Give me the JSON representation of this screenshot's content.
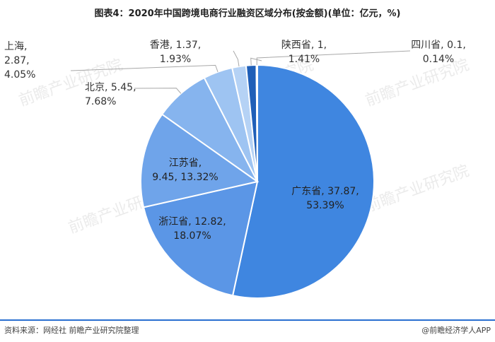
{
  "title": "图表4：2020年中国跨境电商行业融资区域分布(按金额)(单位：亿元，%)",
  "watermark": "前瞻产业研究院",
  "footer": {
    "source": "资料来源：网经社 前瞻产业研究院整理",
    "brand": "@前瞻经济学人APP"
  },
  "chart_data": {
    "type": "pie",
    "title": "图表4：2020年中国跨境电商行业融资区域分布(按金额)(单位：亿元，%)",
    "slices": [
      {
        "name": "广东省",
        "value": 37.87,
        "percent": "53.39%",
        "color": "#3f86e0"
      },
      {
        "name": "浙江省",
        "value": 12.82,
        "percent": "18.07%",
        "color": "#5b96e6"
      },
      {
        "name": "江苏省",
        "value": 9.45,
        "percent": "13.32%",
        "color": "#6fa4ea"
      },
      {
        "name": "北京",
        "value": 5.45,
        "percent": "7.68%",
        "color": "#86b4ee"
      },
      {
        "name": "上海",
        "value": 2.87,
        "percent": "4.05%",
        "color": "#9ec4f2"
      },
      {
        "name": "香港",
        "value": 1.37,
        "percent": "1.93%",
        "color": "#b5d2f5"
      },
      {
        "name": "陕西省",
        "value": 1,
        "percent": "1.41%",
        "color": "#1f5fb8"
      },
      {
        "name": "四川省",
        "value": 0.1,
        "percent": "0.14%",
        "color": "#17488f"
      }
    ]
  }
}
